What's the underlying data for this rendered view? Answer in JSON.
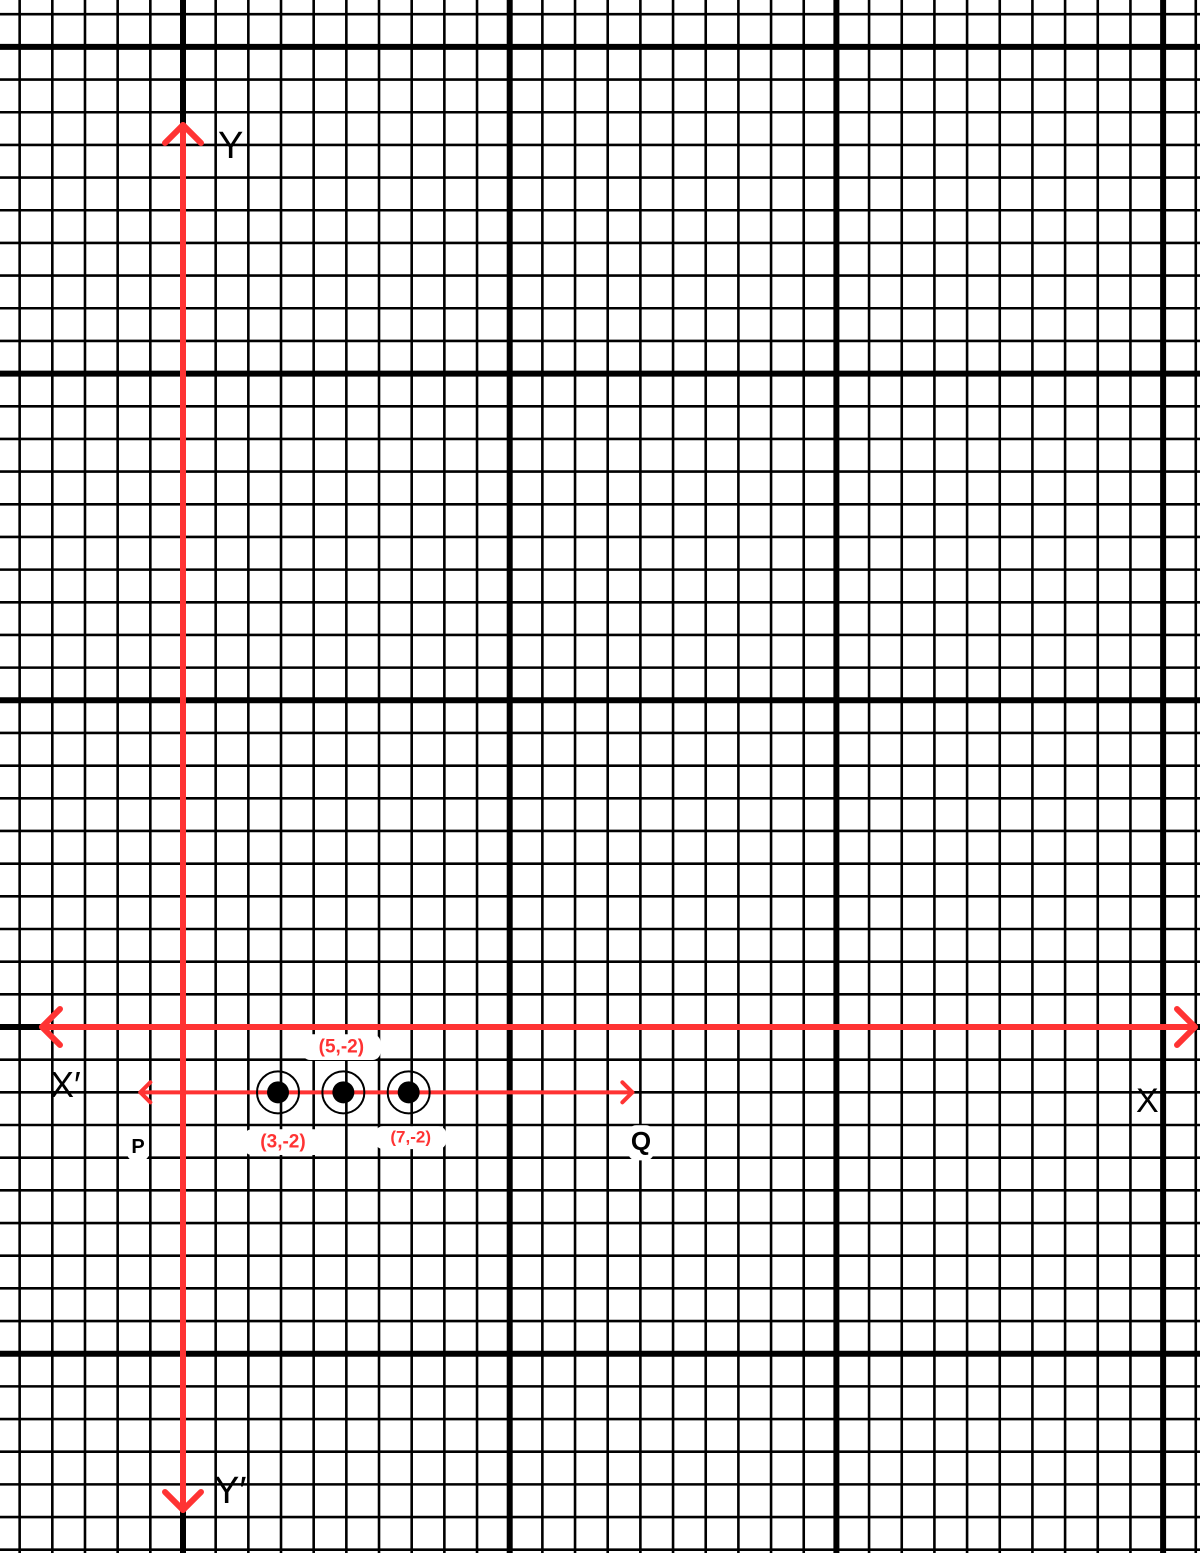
{
  "diagram": {
    "axes": {
      "x_label": "X",
      "x_neg_label": "X′",
      "y_label": "Y",
      "y_neg_label": "Y′"
    },
    "line": {
      "start_label": "P",
      "end_label": "Q",
      "y": -2,
      "from_x": -1,
      "to_x": 14
    },
    "points": [
      {
        "label": "(3,-2)",
        "x": 3,
        "y": -2
      },
      {
        "label": "(5,-2)",
        "x": 5,
        "y": -2
      },
      {
        "label": "(7,-2)",
        "x": 7,
        "y": -2
      }
    ],
    "colors": {
      "axis": "#ff3333",
      "grid": "#000000",
      "point_label": "#ff3333"
    }
  }
}
